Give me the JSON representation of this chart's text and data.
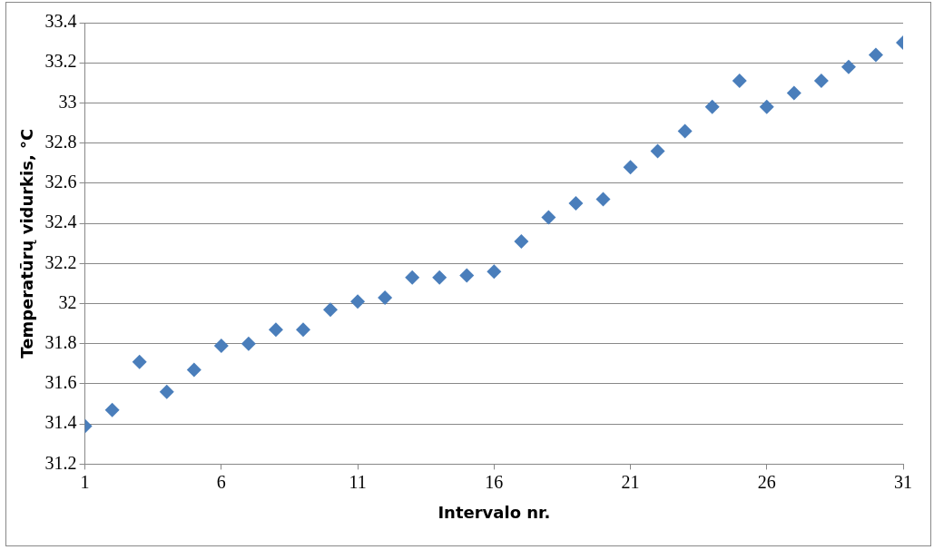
{
  "chart_data": {
    "type": "scatter",
    "xlabel": "Intervalo nr.",
    "ylabel": "Temperatūrų vidurkis, °C",
    "x": [
      1,
      2,
      3,
      4,
      5,
      6,
      7,
      8,
      9,
      10,
      11,
      12,
      13,
      14,
      15,
      16,
      17,
      18,
      19,
      20,
      21,
      22,
      23,
      24,
      25,
      26,
      27,
      28,
      29,
      30,
      31
    ],
    "series": [
      {
        "color": "#4a7ebb",
        "values": [
          31.39,
          31.47,
          31.71,
          31.56,
          31.67,
          31.79,
          31.8,
          31.87,
          31.87,
          31.97,
          32.01,
          32.03,
          32.13,
          32.13,
          32.14,
          32.16,
          32.31,
          32.43,
          32.5,
          32.52,
          32.68,
          32.76,
          32.86,
          32.98,
          33.11,
          32.98,
          33.05,
          33.11,
          33.18,
          33.24,
          33.3
        ]
      }
    ],
    "xlim": [
      1,
      31
    ],
    "xticks": [
      1,
      6,
      11,
      16,
      21,
      26,
      31
    ],
    "ylim": [
      31.2,
      33.4
    ],
    "yticks": [
      31.2,
      31.4,
      31.6,
      31.8,
      32,
      32.2,
      32.4,
      32.6,
      32.8,
      33,
      33.2,
      33.4
    ],
    "grid": "y",
    "legend": false,
    "marker": "diamond"
  }
}
